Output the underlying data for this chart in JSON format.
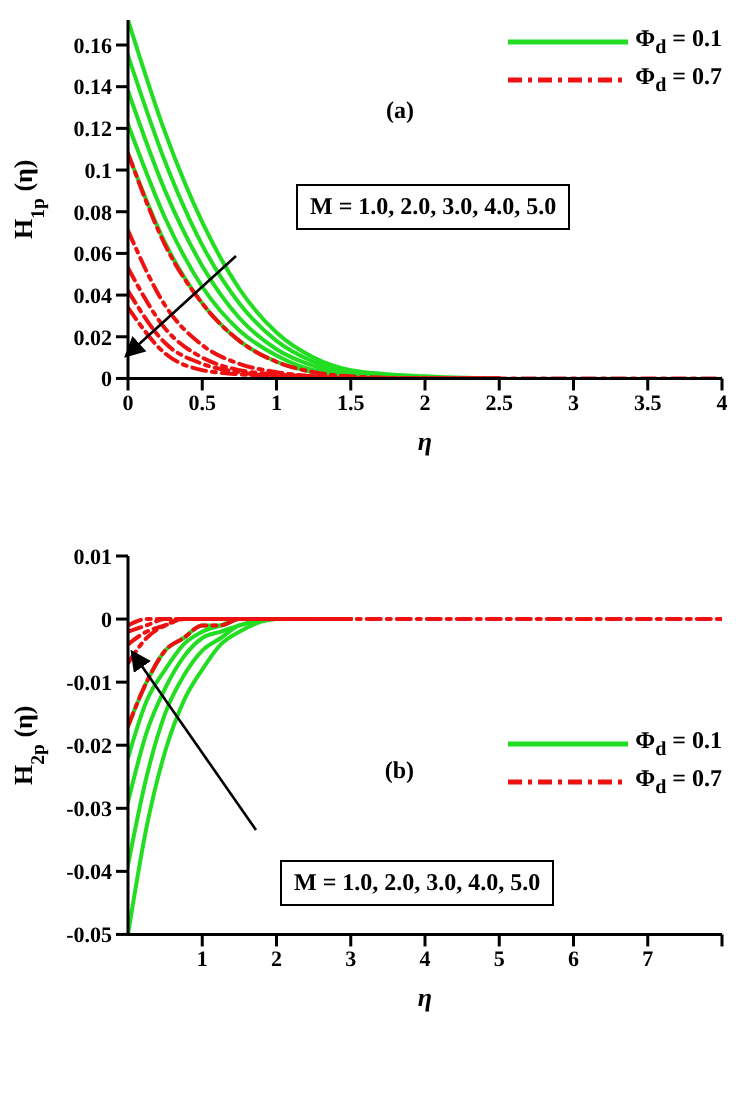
{
  "chart_data": [
    {
      "type": "line",
      "xlabel": "η",
      "ylabel": "H$_{1p}$(η)",
      "xlim": [
        0,
        4
      ],
      "xticks": [
        0,
        0.5,
        1,
        1.5,
        2,
        2.5,
        3,
        3.5,
        4
      ],
      "ylim": [
        0,
        0.172
      ],
      "yticks": [
        0,
        0.02,
        0.04,
        0.06,
        0.08,
        0.1,
        0.12,
        0.14,
        0.16
      ],
      "legend": "top right",
      "grid": false,
      "marker": "none",
      "annotations": [
        "(a)",
        "M = 1.0, 2.0, 3.0, 4.0, 5.0"
      ],
      "x": [
        0,
        0.25,
        0.5,
        0.75,
        1,
        1.25,
        1.5,
        2,
        2.5,
        3,
        4
      ],
      "series": [
        {
          "name": "Φ$_{d}$ = 0.1",
          "color": "#22dd22",
          "line_style": "solid",
          "values": [
            0.172,
            0.118,
            0.075,
            0.043,
            0.022,
            0.01,
            0.004,
            0.001,
            0,
            null,
            null
          ]
        },
        {
          "color": "#22dd22",
          "line_style": "solid",
          "values": [
            0.155,
            0.104,
            0.064,
            0.036,
            0.018,
            0.008,
            0.003,
            0,
            0,
            null,
            null
          ]
        },
        {
          "color": "#22dd22",
          "line_style": "solid",
          "values": [
            0.138,
            0.09,
            0.054,
            0.029,
            0.014,
            0.006,
            0.002,
            0,
            0,
            null,
            null
          ]
        },
        {
          "color": "#22dd22",
          "line_style": "solid",
          "values": [
            0.122,
            0.077,
            0.044,
            0.023,
            0.011,
            0.004,
            0.002,
            0,
            0,
            null,
            null
          ]
        },
        {
          "color": "#22dd22",
          "line_style": "solid",
          "values": [
            0.108,
            0.065,
            0.036,
            0.018,
            0.008,
            0.003,
            0.001,
            0,
            0,
            null,
            null
          ]
        },
        {
          "name": "Φ$_{d}$ = 0.7",
          "color": "#ee1111",
          "line_style": "dashed",
          "values": [
            0.108,
            0.064,
            0.036,
            0.018,
            0.008,
            0.003,
            0.001,
            0,
            0,
            null,
            null
          ]
        },
        {
          "color": "#ee1111",
          "line_style": "dashed",
          "values": [
            0.071,
            0.035,
            0.016,
            0.007,
            0.003,
            0.001,
            0,
            0,
            0,
            null,
            null
          ]
        },
        {
          "color": "#ee1111",
          "line_style": "dashed",
          "values": [
            0.053,
            0.024,
            0.01,
            0.004,
            0.002,
            0.001,
            0,
            0,
            0,
            null,
            null
          ]
        },
        {
          "color": "#ee1111",
          "line_style": "dashed",
          "values": [
            0.042,
            0.017,
            0.007,
            0.003,
            0.001,
            0,
            0,
            0,
            0,
            null,
            null
          ]
        },
        {
          "color": "#ee1111",
          "line_style": "dashed",
          "values": [
            0.034,
            0.012,
            0.004,
            0.002,
            0.001,
            0,
            0,
            0,
            0,
            0,
            0
          ]
        }
      ]
    },
    {
      "type": "line",
      "xlabel": "η",
      "ylabel": "H$_{2p}$(η)",
      "xlim": [
        0,
        8
      ],
      "xticks": [
        1,
        2,
        3,
        4,
        5,
        6,
        7,
        {
          "value": 8,
          "label": null
        }
      ],
      "ylim": [
        -0.05,
        0.01
      ],
      "yticks": [
        -0.05,
        -0.04,
        -0.03,
        -0.02,
        -0.01,
        0,
        0.01
      ],
      "legend": "right",
      "grid": false,
      "marker": "none",
      "annotations": [
        "(b)",
        "M = 1.0, 2.0, 3.0, 4.0, 5.0"
      ],
      "x": [
        0,
        0.25,
        0.5,
        0.75,
        1,
        1.25,
        1.5,
        2,
        2.5,
        3,
        4,
        5,
        6,
        7,
        8
      ],
      "series": [
        {
          "name": "Φ$_{d}$ = 0.1",
          "color": "#22dd22",
          "line_style": "solid",
          "values": [
            -0.05,
            -0.033,
            -0.021,
            -0.013,
            -0.008,
            -0.004,
            -0.002,
            0,
            0,
            0,
            null,
            null,
            null,
            null,
            null
          ]
        },
        {
          "color": "#22dd22",
          "line_style": "solid",
          "values": [
            -0.039,
            -0.025,
            -0.015,
            -0.009,
            -0.005,
            -0.003,
            -0.001,
            0,
            0,
            0,
            null,
            null,
            null,
            null,
            null
          ]
        },
        {
          "color": "#22dd22",
          "line_style": "solid",
          "values": [
            -0.029,
            -0.018,
            -0.011,
            -0.006,
            -0.003,
            -0.002,
            -0.001,
            0,
            0,
            0,
            null,
            null,
            null,
            null,
            null
          ]
        },
        {
          "color": "#22dd22",
          "line_style": "solid",
          "values": [
            -0.022,
            -0.013,
            -0.008,
            -0.004,
            -0.002,
            -0.001,
            0,
            0,
            0,
            0,
            null,
            null,
            null,
            null,
            null
          ]
        },
        {
          "color": "#22dd22",
          "line_style": "solid",
          "values": [
            -0.017,
            -0.01,
            -0.005,
            -0.003,
            -0.001,
            -0.001,
            0,
            0,
            0,
            0,
            null,
            null,
            null,
            null,
            null
          ]
        },
        {
          "name": "Φ$_{d}$ = 0.7",
          "color": "#ee1111",
          "line_style": "dashed",
          "values": [
            -0.017,
            -0.01,
            -0.005,
            -0.003,
            -0.001,
            -0.001,
            0,
            0,
            0,
            0,
            null,
            null,
            null,
            null,
            null
          ]
        },
        {
          "color": "#ee1111",
          "line_style": "dashed",
          "values": [
            -0.007,
            -0.003,
            -0.001,
            0,
            0,
            0,
            0,
            0,
            0,
            0,
            null,
            null,
            null,
            null,
            null
          ]
        },
        {
          "color": "#ee1111",
          "line_style": "dashed",
          "values": [
            -0.004,
            -0.002,
            -0.001,
            0,
            0,
            0,
            0,
            0,
            0,
            0,
            null,
            null,
            null,
            null,
            null
          ]
        },
        {
          "color": "#ee1111",
          "line_style": "dashed",
          "values": [
            -0.002,
            -0.001,
            0,
            0,
            0,
            0,
            0,
            0,
            0,
            0,
            null,
            null,
            null,
            null,
            null
          ]
        },
        {
          "color": "#ee1111",
          "line_style": "dashed",
          "values": [
            -0.001,
            0,
            0,
            0,
            0,
            0,
            0,
            0,
            0,
            0,
            0,
            0,
            0,
            0,
            0
          ]
        }
      ]
    }
  ]
}
